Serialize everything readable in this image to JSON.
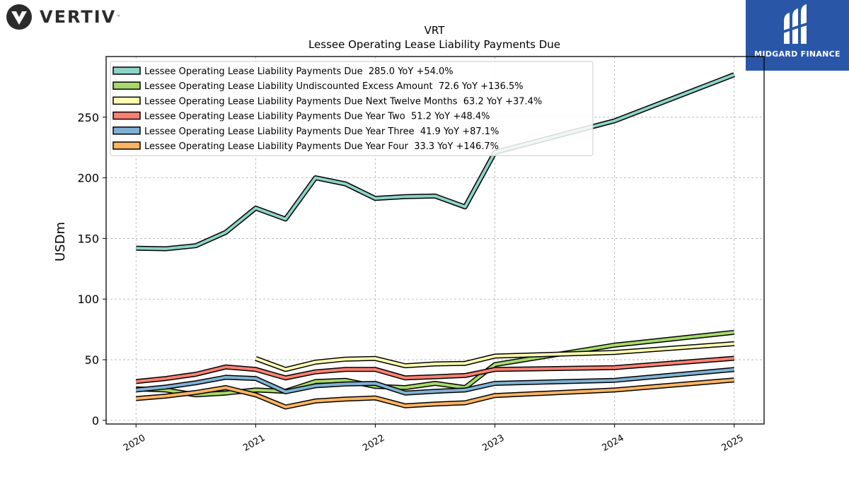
{
  "branding": {
    "left_logo_text": "VERTIV",
    "left_logo_tm": "™",
    "right_logo_text": "MIDGARD FINANCE",
    "right_logo_bg": "#2a56a8"
  },
  "chart_data": {
    "type": "line",
    "title": "VRT",
    "subtitle": "Lessee Operating Lease Liability Payments Due",
    "ylabel": "USDm",
    "xlabel": "",
    "ylim": [
      -3,
      300
    ],
    "xlim": [
      2019.75,
      2025.25
    ],
    "yticks": [
      0,
      50,
      100,
      150,
      200,
      250
    ],
    "xticks": [
      "2020",
      "2021",
      "2022",
      "2023",
      "2024",
      "2025"
    ],
    "grid": true,
    "legend_position": "top-left",
    "series": [
      {
        "name": "Lessee Operating Lease Liability Payments Due",
        "legend": "Lessee Operating Lease Liability Payments Due  285.0 YoY +54.0%",
        "color": "#8dd3c7",
        "x": [
          2020.0,
          2020.25,
          2020.5,
          2020.75,
          2021.0,
          2021.25,
          2021.5,
          2021.75,
          2022.0,
          2022.25,
          2022.5,
          2022.75,
          2023.0,
          2024.0,
          2025.0
        ],
        "y": [
          142,
          141.5,
          144,
          155,
          175,
          166,
          200,
          195,
          183,
          184.5,
          185,
          176,
          221,
          247,
          285
        ]
      },
      {
        "name": "Lessee Operating Lease Liability Undiscounted Excess Amount",
        "legend": "Lessee Operating Lease Liability Undiscounted Excess Amount  72.6 YoY +136.5%",
        "color": "#a6d96a",
        "x": [
          2020.0,
          2020.25,
          2020.5,
          2020.75,
          2021.0,
          2021.25,
          2021.5,
          2021.75,
          2022.0,
          2022.25,
          2022.5,
          2022.75,
          2023.0,
          2024.0,
          2025.0
        ],
        "y": [
          26,
          25,
          21,
          22.5,
          25,
          24,
          32,
          33,
          28,
          27,
          30.5,
          27,
          46,
          62,
          72.6
        ]
      },
      {
        "name": "Lessee Operating Lease Liability Payments Due Next Twelve Months",
        "legend": "Lessee Operating Lease Liability Payments Due Next Twelve Months  63.2 YoY +37.4%",
        "color": "#ffffb3",
        "x": [
          2021.0,
          2021.25,
          2021.5,
          2021.75,
          2022.0,
          2022.25,
          2022.5,
          2022.75,
          2023.0,
          2024.0,
          2025.0
        ],
        "y": [
          51,
          42,
          48,
          50.5,
          51,
          45,
          46.5,
          47,
          53,
          56,
          63.2
        ]
      },
      {
        "name": "Lessee Operating Lease Liability Payments Due Year Two",
        "legend": "Lessee Operating Lease Liability Payments Due Year Two  51.2 YoY +48.4%",
        "color": "#fb8072",
        "x": [
          2020.0,
          2020.25,
          2020.5,
          2020.75,
          2021.0,
          2021.25,
          2021.5,
          2021.75,
          2022.0,
          2022.25,
          2022.5,
          2022.75,
          2023.0,
          2024.0,
          2025.0
        ],
        "y": [
          32,
          34.5,
          38,
          44,
          42,
          35,
          40,
          42,
          42,
          35,
          36,
          37,
          42,
          43.5,
          51.2
        ]
      },
      {
        "name": "Lessee Operating Lease Liability Payments Due Year Three",
        "legend": "Lessee Operating Lease Liability Payments Due Year Three  41.9 YoY +87.1%",
        "color": "#80b1d3",
        "x": [
          2020.0,
          2020.25,
          2020.5,
          2020.75,
          2021.0,
          2021.25,
          2021.5,
          2021.75,
          2022.0,
          2022.25,
          2022.5,
          2022.75,
          2023.0,
          2024.0,
          2025.0
        ],
        "y": [
          25,
          27.5,
          31,
          35.5,
          34.5,
          23.5,
          28.5,
          30,
          30.5,
          22.5,
          24,
          25,
          30.5,
          33,
          41.9
        ]
      },
      {
        "name": "Lessee Operating Lease Liability Payments Due Year Four",
        "legend": "Lessee Operating Lease Liability Payments Due Year Four  33.3 YoY +146.7%",
        "color": "#fdb462",
        "x": [
          2020.0,
          2020.25,
          2020.5,
          2020.75,
          2021.0,
          2021.25,
          2021.5,
          2021.75,
          2022.0,
          2022.25,
          2022.5,
          2022.75,
          2023.0,
          2024.0,
          2025.0
        ],
        "y": [
          18,
          20,
          23,
          27,
          21,
          11,
          16,
          17.5,
          18.5,
          12,
          13.5,
          14.5,
          20.5,
          25,
          33.3
        ]
      }
    ]
  }
}
